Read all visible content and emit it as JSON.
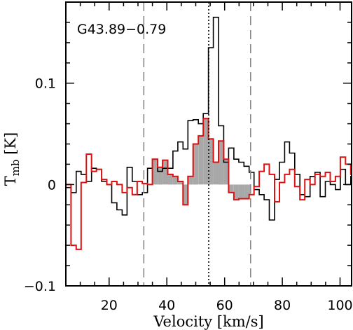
{
  "chart_data": {
    "type": "line",
    "title": "",
    "annotation": "G43.89−0.79",
    "xlabel": "Velocity [km/s]",
    "ylabel_main": "T",
    "ylabel_sub": "mb",
    "ylabel_unit": " [K]",
    "xlim": [
      5,
      104
    ],
    "ylim": [
      -0.1,
      0.18
    ],
    "x_ticks": [
      20,
      40,
      60,
      80,
      100
    ],
    "x_tick_labels": [
      "20",
      "40",
      "60",
      "80",
      "100"
    ],
    "y_ticks": [
      -0.1,
      0,
      0.1
    ],
    "y_tick_labels": [
      "−0.1",
      "0",
      "0.1"
    ],
    "grid": false,
    "colors": {
      "series_black": "#000000",
      "series_red": "#dd1111",
      "fill": "#a8a8a8",
      "markers": "#888888"
    },
    "vertical_markers": [
      {
        "x": 32,
        "style": "dashed"
      },
      {
        "x": 69,
        "style": "dashed"
      },
      {
        "x": 54.5,
        "style": "dotted"
      }
    ],
    "series": [
      {
        "color": "black",
        "style": "step",
        "x": [
          5,
          6.8,
          8.6,
          10.3,
          12.1,
          13.9,
          15.6,
          17.4,
          19.2,
          20.9,
          22.7,
          24.5,
          26.2,
          28,
          29.7,
          31.5,
          33.3,
          35,
          36.8,
          38.5,
          40.3,
          42.1,
          43.8,
          45.6,
          47.3,
          49.1,
          50.9,
          52.6,
          54.4,
          56.1,
          57.9,
          59.7,
          61.4,
          63.2,
          64.9,
          66.7,
          68.5,
          70.2,
          72,
          73.7,
          75.5,
          77.3,
          79,
          80.8,
          82.5,
          84.3,
          86.1,
          87.8,
          89.6,
          91.3,
          93.1,
          94.9,
          96.6,
          98.4,
          100.1,
          101.9,
          103.7
        ],
        "y": [
          -0.003,
          -0.008,
          0.013,
          0.01,
          0.003,
          0.016,
          0.015,
          0.003,
          0.0,
          -0.018,
          -0.025,
          -0.03,
          0.017,
          0.003,
          -0.01,
          -0.008,
          0.016,
          0.025,
          0.013,
          0.016,
          0.016,
          0.033,
          0.042,
          0.035,
          0.063,
          0.064,
          0.06,
          0.07,
          0.135,
          0.165,
          0.058,
          0.022,
          0.036,
          0.025,
          0.022,
          0.018,
          0.012,
          -0.005,
          -0.01,
          -0.015,
          -0.035,
          0.005,
          0.022,
          0.042,
          0.031,
          0.01,
          -0.01,
          -0.012,
          0.008,
          0.012,
          -0.012,
          0.003,
          0.0,
          -0.005,
          0.015,
          0.0,
          0.008
        ]
      },
      {
        "color": "red",
        "style": "step",
        "x": [
          5,
          6.8,
          8.6,
          10.3,
          12.1,
          13.9,
          15.6,
          17.4,
          19.2,
          20.9,
          22.7,
          24.5,
          26.2,
          28,
          29.7,
          31.5,
          33.3,
          35,
          36.8,
          38.5,
          40.3,
          42.1,
          43.8,
          45.6,
          47.3,
          49.1,
          50.9,
          52.6,
          54.4,
          56.1,
          57.9,
          59.7,
          61.4,
          63.2,
          64.9,
          66.7,
          68.5,
          70.2,
          72,
          73.7,
          75.5,
          77.3,
          79,
          80.8,
          82.5,
          84.3,
          86.1,
          87.8,
          89.6,
          91.3,
          93.1,
          94.9,
          96.6,
          98.4,
          100.1,
          101.9,
          103.7
        ],
        "y": [
          0.0,
          -0.06,
          -0.064,
          0.002,
          0.03,
          0.013,
          0.015,
          0.005,
          0.0,
          0.003,
          0.0,
          -0.008,
          -0.003,
          -0.01,
          0.003,
          0.001,
          0.0,
          0.025,
          0.017,
          0.024,
          0.01,
          0.008,
          0.003,
          -0.02,
          0.008,
          0.04,
          0.048,
          0.065,
          0.045,
          0.022,
          0.043,
          0.025,
          -0.008,
          -0.015,
          -0.014,
          -0.014,
          -0.01,
          -0.002,
          0.013,
          0.02,
          0.01,
          -0.017,
          0.002,
          0.01,
          0.015,
          -0.002,
          -0.015,
          0.005,
          0.0,
          0.01,
          0.008,
          0.012,
          0.003,
          0.008,
          0.027,
          0.02,
          0.01
        ]
      }
    ]
  }
}
